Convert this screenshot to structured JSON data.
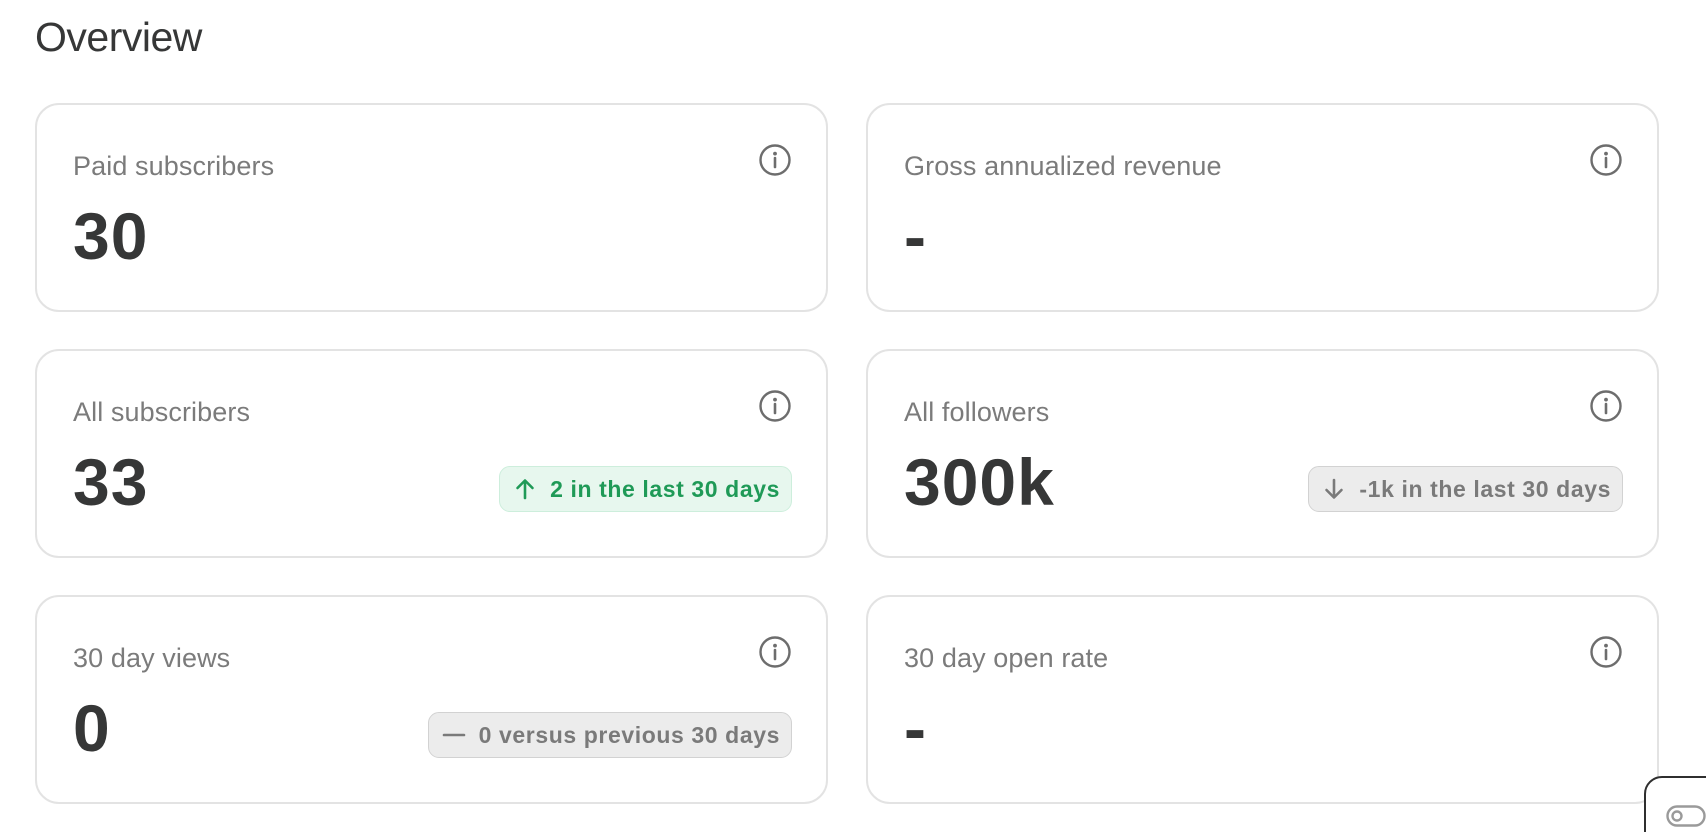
{
  "page": {
    "title": "Overview"
  },
  "cards": {
    "paid_subscribers": {
      "label": "Paid subscribers",
      "value": "30"
    },
    "gross_annualized_revenue": {
      "label": "Gross annualized revenue",
      "value": "-"
    },
    "all_subscribers": {
      "label": "All subscribers",
      "value": "33",
      "badge": {
        "text": "2 in the last 30 days",
        "icon": "arrow-up-icon",
        "tone": "positive"
      }
    },
    "all_followers": {
      "label": "All followers",
      "value": "300k",
      "badge": {
        "text": "-1k in the last 30 days",
        "icon": "arrow-down-icon",
        "tone": "neutral"
      }
    },
    "thirty_day_views": {
      "label": "30 day views",
      "value": "0",
      "badge": {
        "text": "0 versus previous 30 days",
        "icon": "dash-icon",
        "tone": "neutral"
      }
    },
    "thirty_day_open_rate": {
      "label": "30 day open rate",
      "value": "-"
    }
  },
  "icons": {
    "card_info": "info-icon",
    "corner_widget": "toggle-icon"
  },
  "colors": {
    "positive_text": "#1f9a57",
    "positive_bg": "#e7f7ee",
    "neutral_text": "#7a7a7a",
    "neutral_bg": "#ececec",
    "card_border": "#e3e3e3",
    "label_text": "#7b7b7b",
    "value_text": "#363737"
  }
}
